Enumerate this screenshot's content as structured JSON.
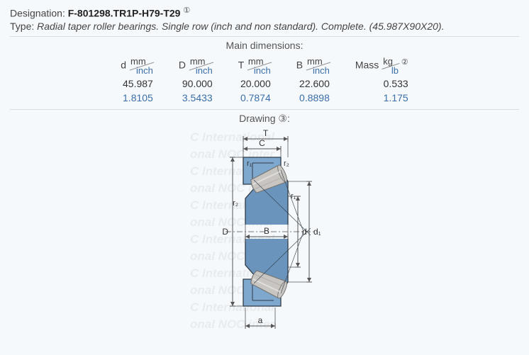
{
  "header": {
    "designation_label": "Designation:",
    "designation_value": "F-801298.TR1P-H79-T29",
    "designation_note": "①",
    "type_label": "Type:",
    "type_value": "Radial taper roller bearings. Single row (inch and non standard). Complete. (45.987X90X20)."
  },
  "dimensions": {
    "title": "Main dimensions:",
    "columns": [
      {
        "sym": "d",
        "u_top": "mm",
        "u_bot": "inch"
      },
      {
        "sym": "D",
        "u_top": "mm",
        "u_bot": "inch"
      },
      {
        "sym": "T",
        "u_top": "mm",
        "u_bot": "inch"
      },
      {
        "sym": "B",
        "u_top": "mm",
        "u_bot": "inch"
      },
      {
        "sym": "Mass",
        "u_top": "kg",
        "u_bot": "lb",
        "note": "②"
      }
    ],
    "row_primary": [
      "45.987",
      "90.000",
      "20.000",
      "22.600",
      "0.533"
    ],
    "row_alt": [
      "1.8105",
      "3.5433",
      "0.7874",
      "0.8898",
      "1.175"
    ]
  },
  "drawing": {
    "title": "Drawing ③:",
    "labels": {
      "T": "T",
      "C": "C",
      "r1": "r₁",
      "r2": "r₂",
      "D": "D",
      "B": "B",
      "d": "d",
      "d1": "d₁",
      "a": "a"
    },
    "colors": {
      "outer_ring": "#7fa8cf",
      "inner_ring": "#6b94bd",
      "roller_fill": "#c9c6c2",
      "roller_stroke": "#777",
      "outline": "#2f3b46",
      "dim_line": "#555",
      "center_line": "#777"
    },
    "watermark_lines": [
      "C International",
      "onal  NOC inter",
      "C International",
      "onal  NOC inter",
      "C International",
      "onal  NOC inter",
      "C International",
      "onal  NOC inter",
      "C International",
      "onal  NOC inter",
      "C International",
      "onal  NOC inter"
    ]
  }
}
